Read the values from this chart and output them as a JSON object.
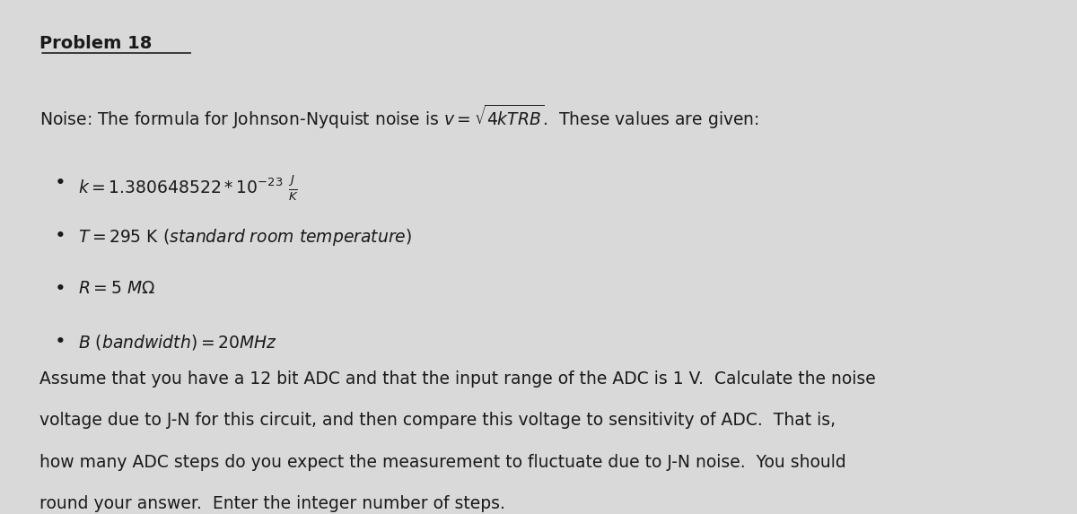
{
  "background_color": "#d9d9d9",
  "title": "Problem 18",
  "title_fontsize": 14,
  "body_color": "#1a1a1a",
  "para2_line1": "Assume that you have a 12 bit ADC and that the input range of the ADC is 1 V.  Calculate the noise",
  "para2_line2": "voltage due to J-N for this circuit, and then compare this voltage to sensitivity of ADC.  That is,",
  "para2_line3": "how many ADC steps do you expect the measurement to fluctuate due to J-N noise.  You should",
  "para2_line4": "round your answer.  Enter the integer number of steps.",
  "font_size_body": 13.5,
  "font_size_bullet": 13.5
}
